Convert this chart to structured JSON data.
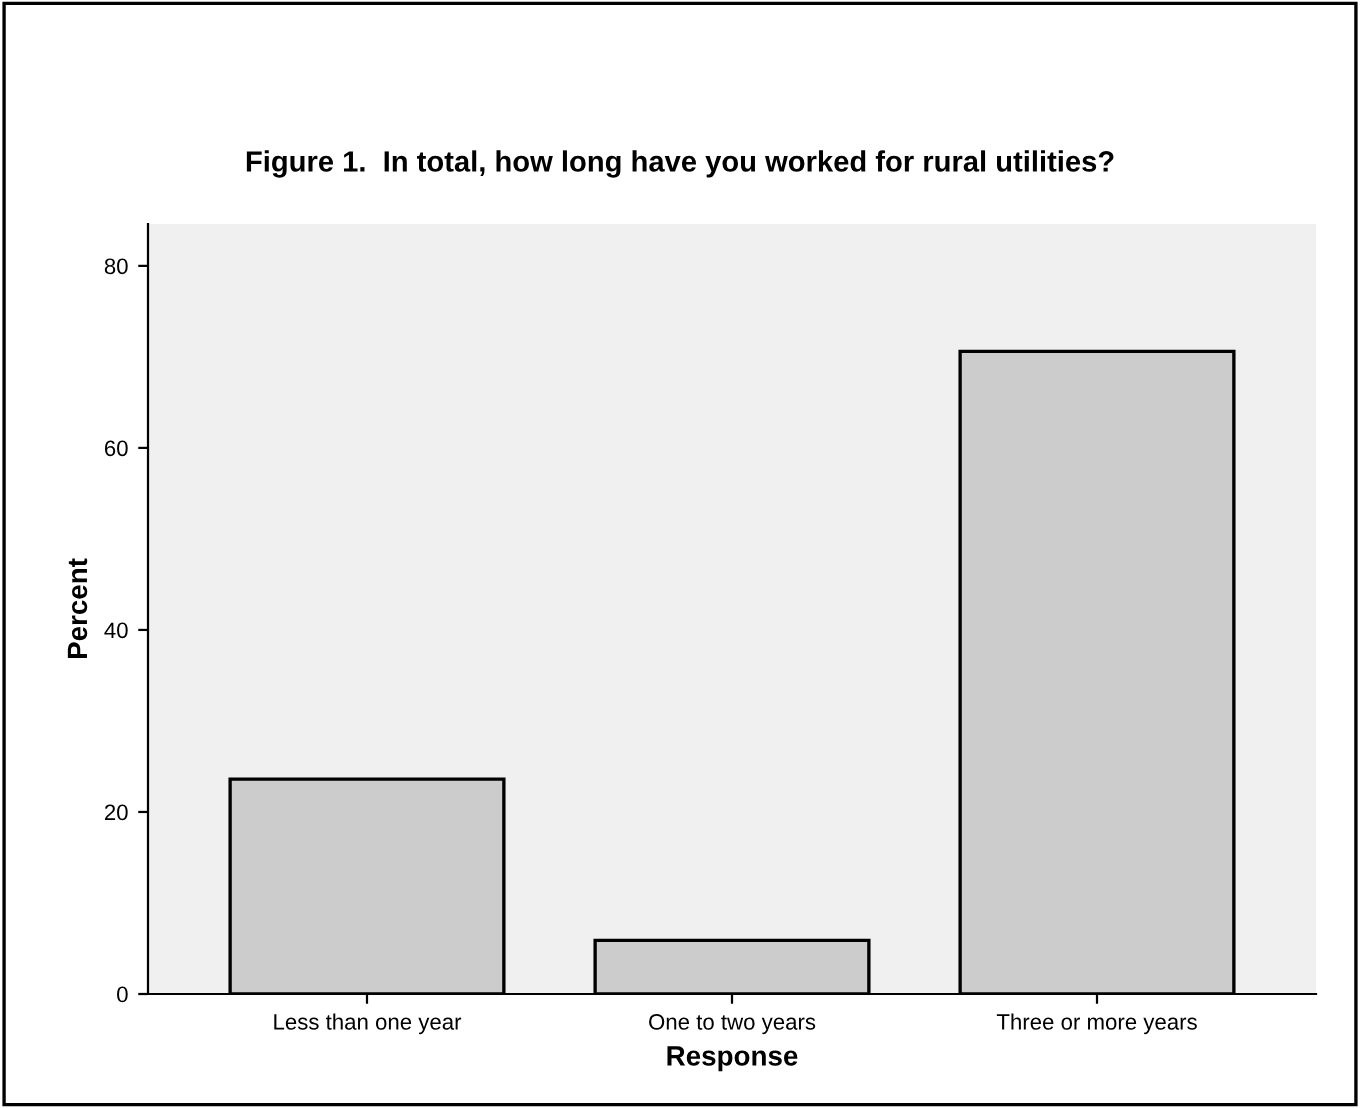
{
  "chart_data": {
    "type": "bar",
    "title": "Figure 1.  In total, how long have you worked for rural utilities?",
    "xlabel": "Response",
    "ylabel": "Percent",
    "categories": [
      "Less than one year",
      "One to two years",
      "Three or more years"
    ],
    "values": [
      23.6,
      5.9,
      70.6
    ],
    "color": "#cccccc",
    "ylim": [
      0,
      84.6
    ],
    "yticks": [
      0,
      20,
      40,
      60,
      80
    ],
    "grid": false
  }
}
